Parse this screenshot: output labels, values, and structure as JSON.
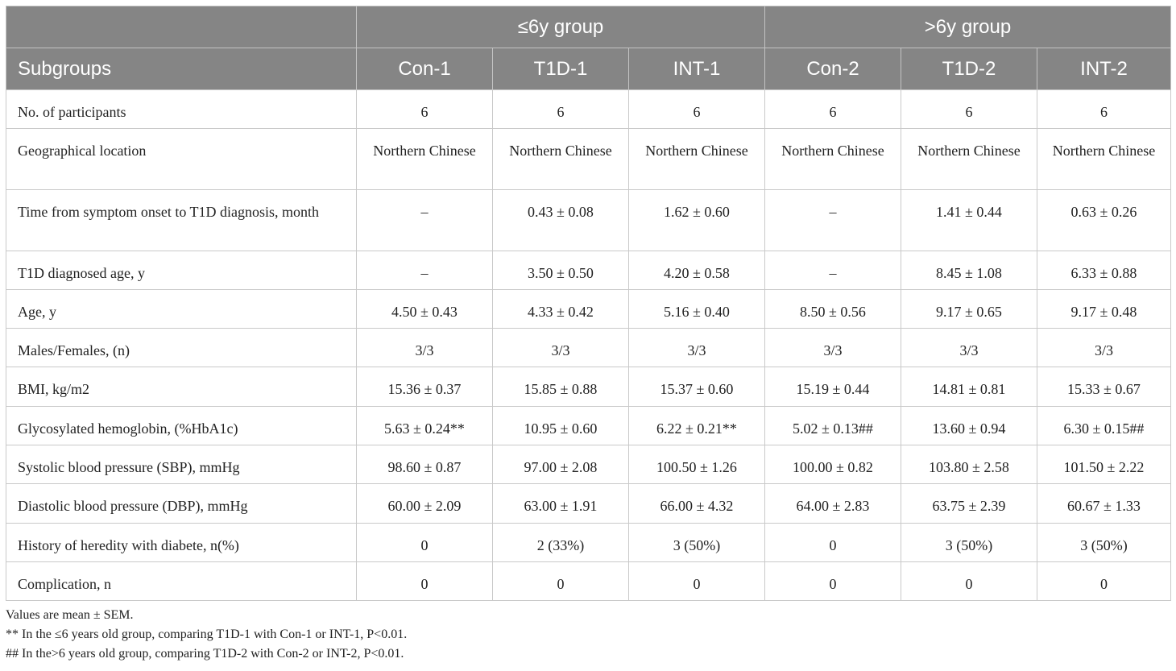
{
  "table": {
    "group_headers": [
      "≤6y group",
      ">6y group"
    ],
    "columns": [
      "Subgroups",
      "Con-1",
      "T1D-1",
      "INT-1",
      "Con-2",
      "T1D-2",
      "INT-2"
    ],
    "rows": [
      {
        "label": "No. of participants",
        "values": [
          "6",
          "6",
          "6",
          "6",
          "6",
          "6"
        ]
      },
      {
        "label": "Geographical location",
        "values": [
          "Northern Chinese",
          "Northern Chinese",
          "Northern Chinese",
          "Northern Chinese",
          "Northern Chinese",
          "Northern Chinese"
        ]
      },
      {
        "label": "Time from symptom onset to T1D diagnosis, month",
        "values": [
          "–",
          "0.43 ± 0.08",
          "1.62 ± 0.60",
          "–",
          "1.41 ± 0.44",
          "0.63 ± 0.26"
        ]
      },
      {
        "label": "T1D diagnosed age, y",
        "values": [
          "–",
          "3.50 ± 0.50",
          "4.20 ± 0.58",
          "–",
          "8.45 ± 1.08",
          "6.33 ± 0.88"
        ]
      },
      {
        "label": "Age, y",
        "values": [
          "4.50 ± 0.43",
          "4.33 ± 0.42",
          "5.16 ± 0.40",
          "8.50 ± 0.56",
          "9.17 ± 0.65",
          "9.17 ± 0.48"
        ]
      },
      {
        "label": "Males/Females, (n)",
        "values": [
          "3/3",
          "3/3",
          "3/3",
          "3/3",
          "3/3",
          "3/3"
        ]
      },
      {
        "label": "BMI, kg/m2",
        "values": [
          "15.36 ± 0.37",
          "15.85 ± 0.88",
          "15.37 ± 0.60",
          "15.19 ± 0.44",
          "14.81 ± 0.81",
          "15.33 ± 0.67"
        ]
      },
      {
        "label": "Glycosylated hemoglobin, (%HbA1c)",
        "values": [
          "5.63 ± 0.24**",
          "10.95 ± 0.60",
          "6.22 ± 0.21**",
          "5.02 ± 0.13##",
          "13.60 ± 0.94",
          "6.30 ± 0.15##"
        ]
      },
      {
        "label": "Systolic blood pressure (SBP), mmHg",
        "values": [
          "98.60 ± 0.87",
          "97.00 ± 2.08",
          "100.50 ± 1.26",
          "100.00 ± 0.82",
          "103.80 ± 2.58",
          "101.50 ± 2.22"
        ]
      },
      {
        "label": "Diastolic blood pressure (DBP), mmHg",
        "values": [
          "60.00 ± 2.09",
          "63.00 ± 1.91",
          "66.00 ± 4.32",
          "64.00 ± 2.83",
          "63.75 ± 2.39",
          "60.67 ± 1.33"
        ]
      },
      {
        "label": "History of heredity with diabete, n(%)",
        "values": [
          "0",
          "2 (33%)",
          "3 (50%)",
          "0",
          "3 (50%)",
          "3 (50%)"
        ]
      },
      {
        "label": "Complication, n",
        "values": [
          "0",
          "0",
          "0",
          "0",
          "0",
          "0"
        ]
      }
    ]
  },
  "notes": [
    "Values are mean ± SEM.",
    "** In the ≤6 years old group, comparing T1D-1 with Con-1 or INT-1, P<0.01.",
    "## In the>6 years old group, comparing T1D-2 with Con-2 or INT-2, P<0.01."
  ]
}
